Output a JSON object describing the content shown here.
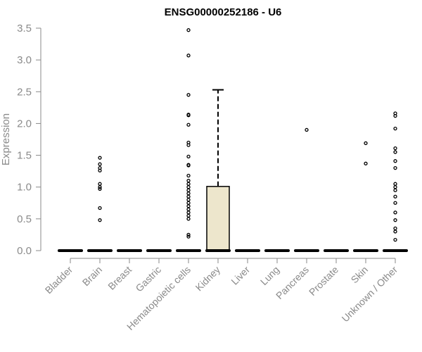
{
  "chart_data": {
    "type": "box",
    "title": "ENSG00000252186 - U6",
    "xlabel": "",
    "ylabel": "Expression",
    "ylim": [
      0,
      3.5
    ],
    "yticks": [
      "0.0",
      "0.5",
      "1.0",
      "1.5",
      "2.0",
      "2.5",
      "3.0",
      "3.5"
    ],
    "grid": false,
    "categories": [
      "Bladder",
      "Brain",
      "Breast",
      "Gastric",
      "Hematopoietic cells",
      "Kidney",
      "Liver",
      "Lung",
      "Pancreas",
      "Prostate",
      "Skin",
      "Unknown / Other"
    ],
    "boxes": [
      {
        "q1": 0,
        "median": 0,
        "q3": 0,
        "whisker_low": 0,
        "whisker_high": 0,
        "outliers": []
      },
      {
        "q1": 0,
        "median": 0,
        "q3": 0,
        "whisker_low": 0,
        "whisker_high": 0,
        "outliers": [
          1.46,
          1.36,
          1.3,
          1.26,
          1.05,
          1.0,
          0.97,
          0.67,
          0.48
        ]
      },
      {
        "q1": 0,
        "median": 0,
        "q3": 0,
        "whisker_low": 0,
        "whisker_high": 0,
        "outliers": []
      },
      {
        "q1": 0,
        "median": 0,
        "q3": 0,
        "whisker_low": 0,
        "whisker_high": 0,
        "outliers": []
      },
      {
        "q1": 0,
        "median": 0,
        "q3": 0,
        "whisker_low": 0,
        "whisker_high": 0,
        "outliers": [
          3.47,
          3.07,
          2.45,
          2.14,
          2.13,
          1.98,
          1.7,
          1.66,
          1.48,
          1.35,
          1.34,
          1.18,
          1.1,
          1.05,
          1.0,
          0.95,
          0.9,
          0.85,
          0.8,
          0.75,
          0.7,
          0.65,
          0.6,
          0.55,
          0.5,
          0.25,
          0.22
        ]
      },
      {
        "q1": 0,
        "median": 0,
        "q3": 1.01,
        "whisker_low": 0,
        "whisker_high": 2.53,
        "outliers": []
      },
      {
        "q1": 0,
        "median": 0,
        "q3": 0,
        "whisker_low": 0,
        "whisker_high": 0,
        "outliers": []
      },
      {
        "q1": 0,
        "median": 0,
        "q3": 0,
        "whisker_low": 0,
        "whisker_high": 0,
        "outliers": []
      },
      {
        "q1": 0,
        "median": 0,
        "q3": 0,
        "whisker_low": 0,
        "whisker_high": 0,
        "outliers": [
          1.9
        ]
      },
      {
        "q1": 0,
        "median": 0,
        "q3": 0,
        "whisker_low": 0,
        "whisker_high": 0,
        "outliers": []
      },
      {
        "q1": 0,
        "median": 0,
        "q3": 0,
        "whisker_low": 0,
        "whisker_high": 0,
        "outliers": [
          1.69,
          1.37
        ]
      },
      {
        "q1": 0,
        "median": 0,
        "q3": 0,
        "whisker_low": 0,
        "whisker_high": 0,
        "outliers": [
          2.16,
          2.12,
          1.92,
          1.61,
          1.55,
          1.41,
          1.3,
          1.05,
          1.0,
          0.95,
          0.85,
          0.75,
          0.6,
          0.48,
          0.35,
          0.3,
          0.17
        ]
      }
    ],
    "colors": {
      "box_fill": "#ede6cc",
      "box_stroke": "#000000",
      "axis": "#8a8a8a",
      "title": "#000000"
    }
  }
}
